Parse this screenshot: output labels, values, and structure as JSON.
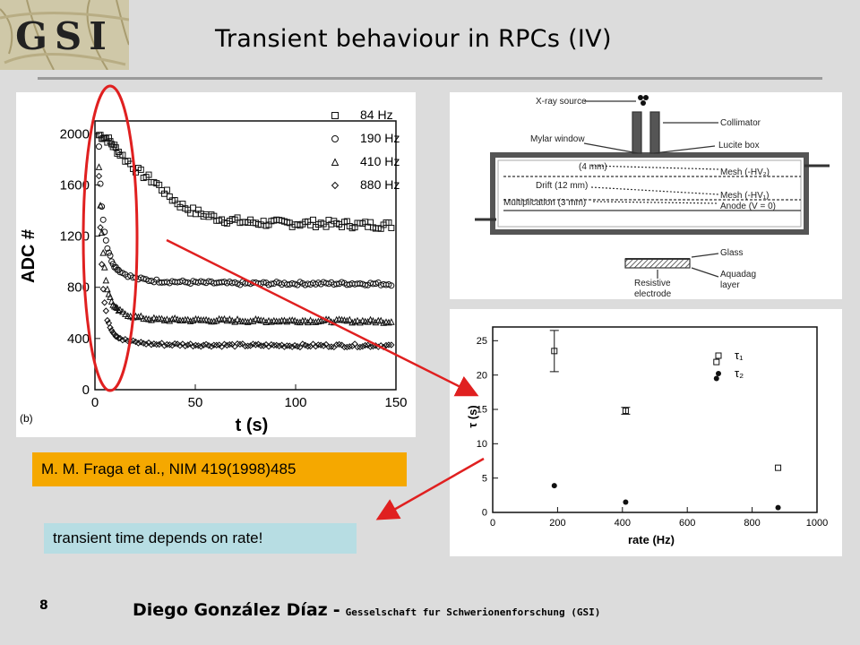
{
  "logo": {
    "text": "GSI"
  },
  "title": "Transient behaviour in RPCs (IV)",
  "page_number": "8",
  "footer": {
    "author": "Diego González Díaz",
    "separator": "-",
    "organization": "Gesselschaft fur Schwerionenforschung (GSI)"
  },
  "reference": "M. M. Fraga et al., NIM 419(1998)485",
  "note": "transient time depends on rate!",
  "diagram": {
    "labels": {
      "xray": "X-ray source",
      "collimator": "Collimator",
      "mylar": "Mylar window",
      "lucite": "Lucite box",
      "gap1": "(4 mm)",
      "mesh2": "Mesh (-HV₂)",
      "drift": "Drift (12 mm)",
      "mesh1": "Mesh (-HV₁)",
      "mult": "Multiplication (3 mm)",
      "anode": "Anode  (V = 0)",
      "glass": "Glass",
      "resistive1": "Resistive",
      "resistive2": "electrode",
      "aquadag1": "Aquadag",
      "aquadag2": "layer"
    }
  },
  "chart_data": [
    {
      "type": "scatter",
      "panel_label": "(b)",
      "xlabel": "t (s)",
      "ylabel": "ADC #",
      "xlim": [
        0,
        150
      ],
      "ylim": [
        0,
        2100
      ],
      "xticks": [
        0,
        50,
        100,
        150
      ],
      "yticks": [
        0,
        400,
        800,
        1200,
        1600,
        2000
      ],
      "legend_position": "top-right",
      "series": [
        {
          "name": "84 Hz",
          "marker": "square",
          "points": [
            [
              2,
              1990
            ],
            [
              4,
              1980
            ],
            [
              6,
              1960
            ],
            [
              8,
              1930
            ],
            [
              10,
              1890
            ],
            [
              14,
              1820
            ],
            [
              18,
              1760
            ],
            [
              22,
              1700
            ],
            [
              26,
              1660
            ],
            [
              30,
              1620
            ],
            [
              34,
              1560
            ],
            [
              38,
              1500
            ],
            [
              42,
              1450
            ],
            [
              48,
              1400
            ],
            [
              56,
              1360
            ],
            [
              64,
              1330
            ],
            [
              75,
              1310
            ],
            [
              90,
              1300
            ],
            [
              110,
              1300
            ],
            [
              130,
              1290
            ],
            [
              148,
              1285
            ]
          ]
        },
        {
          "name": "190 Hz",
          "marker": "circle",
          "points": [
            [
              2,
              1900
            ],
            [
              3,
              1500
            ],
            [
              4,
              1340
            ],
            [
              5,
              1220
            ],
            [
              6,
              1120
            ],
            [
              8,
              1020
            ],
            [
              10,
              960
            ],
            [
              14,
              910
            ],
            [
              20,
              870
            ],
            [
              30,
              850
            ],
            [
              45,
              840
            ],
            [
              70,
              830
            ],
            [
              100,
              830
            ],
            [
              130,
              830
            ],
            [
              148,
              825
            ]
          ]
        },
        {
          "name": "410 Hz",
          "marker": "triangle",
          "points": [
            [
              2,
              1750
            ],
            [
              3,
              1300
            ],
            [
              4,
              1100
            ],
            [
              5,
              920
            ],
            [
              6,
              800
            ],
            [
              8,
              700
            ],
            [
              10,
              640
            ],
            [
              14,
              600
            ],
            [
              20,
              570
            ],
            [
              30,
              550
            ],
            [
              50,
              545
            ],
            [
              80,
              540
            ],
            [
              110,
              540
            ],
            [
              148,
              535
            ]
          ]
        },
        {
          "name": "880 Hz",
          "marker": "diamond",
          "points": [
            [
              2,
              1680
            ],
            [
              3,
              1100
            ],
            [
              4,
              800
            ],
            [
              5,
              650
            ],
            [
              6,
              560
            ],
            [
              8,
              480
            ],
            [
              10,
              430
            ],
            [
              14,
              390
            ],
            [
              20,
              370
            ],
            [
              30,
              355
            ],
            [
              50,
              350
            ],
            [
              90,
              345
            ],
            [
              120,
              345
            ],
            [
              148,
              345
            ]
          ]
        }
      ]
    },
    {
      "type": "scatter",
      "xlabel": "rate (Hz)",
      "ylabel": "τ (s)",
      "xlim": [
        0,
        1000
      ],
      "ylim": [
        0,
        27
      ],
      "xticks": [
        0,
        200,
        400,
        600,
        800,
        1000
      ],
      "yticks": [
        0,
        5,
        10,
        15,
        20,
        25
      ],
      "legend_position": "top-right",
      "series": [
        {
          "name": "τ₁",
          "marker": "open-square",
          "points": [
            [
              190,
              23.5
            ],
            [
              410,
              14.8
            ],
            [
              690,
              21.9
            ],
            [
              880,
              6.5
            ]
          ],
          "errors": [
            3,
            0.5,
            0,
            0
          ]
        },
        {
          "name": "τ₂",
          "marker": "filled-circle",
          "points": [
            [
              190,
              3.9
            ],
            [
              410,
              1.5
            ],
            [
              690,
              19.5
            ],
            [
              880,
              0.7
            ]
          ]
        }
      ]
    }
  ]
}
